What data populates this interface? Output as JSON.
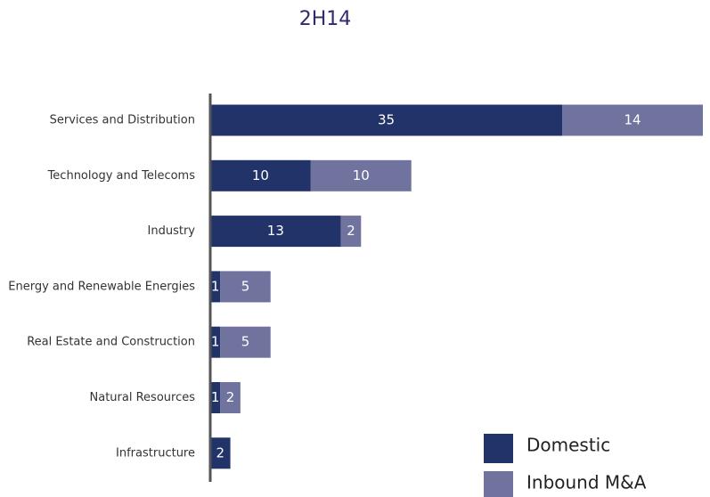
{
  "chart_data": {
    "type": "stacked-barh",
    "title": "2H14",
    "categories": [
      "Services and Distribution",
      "Technology and Telecoms",
      "Industry",
      "Energy and Renewable Energies",
      "Real Estate and Construction",
      "Natural Resources",
      "Infrastructure"
    ],
    "series": [
      {
        "name": "Domestic",
        "color": "#213368",
        "values": [
          35,
          10,
          13,
          1,
          1,
          1,
          2
        ]
      },
      {
        "name": "Inbound M&A",
        "color": "#6f739e",
        "values": [
          14,
          10,
          2,
          5,
          5,
          2,
          null
        ]
      }
    ],
    "legend": "lower right"
  }
}
